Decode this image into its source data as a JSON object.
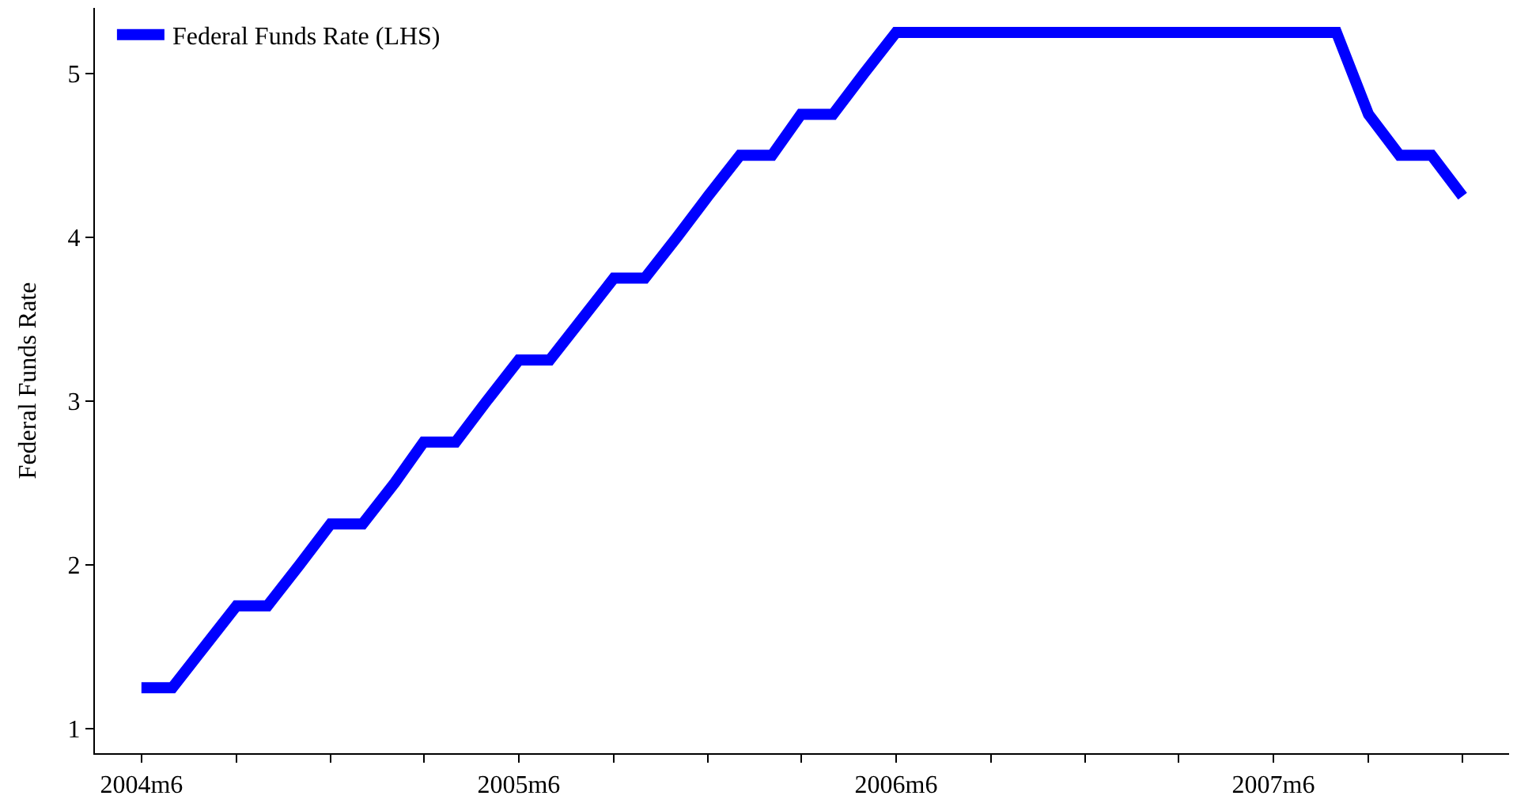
{
  "chart_data": {
    "type": "line",
    "ylabel": "Federal Funds Rate",
    "x": [
      "2004-06",
      "2004-07",
      "2004-08",
      "2004-09",
      "2004-10",
      "2004-11",
      "2004-12",
      "2005-01",
      "2005-02",
      "2005-03",
      "2005-04",
      "2005-05",
      "2005-06",
      "2005-07",
      "2005-08",
      "2005-09",
      "2005-10",
      "2005-11",
      "2005-12",
      "2006-01",
      "2006-02",
      "2006-03",
      "2006-04",
      "2006-05",
      "2006-06",
      "2006-07",
      "2006-08",
      "2006-09",
      "2006-10",
      "2006-11",
      "2006-12",
      "2007-01",
      "2007-02",
      "2007-03",
      "2007-04",
      "2007-05",
      "2007-06",
      "2007-07",
      "2007-08",
      "2007-09",
      "2007-10",
      "2007-11",
      "2007-12"
    ],
    "series": [
      {
        "name": "Federal Funds Rate (LHS)",
        "color": "#0000ff",
        "values": [
          1.25,
          1.25,
          1.5,
          1.75,
          1.75,
          2.0,
          2.25,
          2.25,
          2.5,
          2.75,
          2.75,
          3.0,
          3.25,
          3.25,
          3.5,
          3.75,
          3.75,
          4.0,
          4.25,
          4.5,
          4.5,
          4.75,
          4.75,
          5.0,
          5.25,
          5.25,
          5.25,
          5.25,
          5.25,
          5.25,
          5.25,
          5.25,
          5.25,
          5.25,
          5.25,
          5.25,
          5.25,
          5.25,
          5.25,
          4.75,
          4.5,
          4.5,
          4.25
        ]
      }
    ],
    "xlim": [
      "2004-04-17",
      "2008-01-15"
    ],
    "xticks": [
      {
        "value": "2004-06",
        "label": "2004m6"
      },
      {
        "value": "2004-09",
        "label": null
      },
      {
        "value": "2004-12",
        "label": null
      },
      {
        "value": "2005-03",
        "label": null
      },
      {
        "value": "2005-06",
        "label": "2005m6"
      },
      {
        "value": "2005-09",
        "label": null
      },
      {
        "value": "2005-12",
        "label": null
      },
      {
        "value": "2006-03",
        "label": null
      },
      {
        "value": "2006-06",
        "label": "2006m6"
      },
      {
        "value": "2006-09",
        "label": null
      },
      {
        "value": "2006-12",
        "label": null
      },
      {
        "value": "2007-03",
        "label": null
      },
      {
        "value": "2007-06",
        "label": "2007m6"
      },
      {
        "value": "2007-09",
        "label": null
      },
      {
        "value": "2007-12",
        "label": null
      }
    ],
    "ylim": [
      0.85,
      5.4
    ],
    "yticks": [
      1,
      2,
      3,
      4,
      5
    ],
    "legend": "top left",
    "marker": "none",
    "line_style": "solid"
  }
}
